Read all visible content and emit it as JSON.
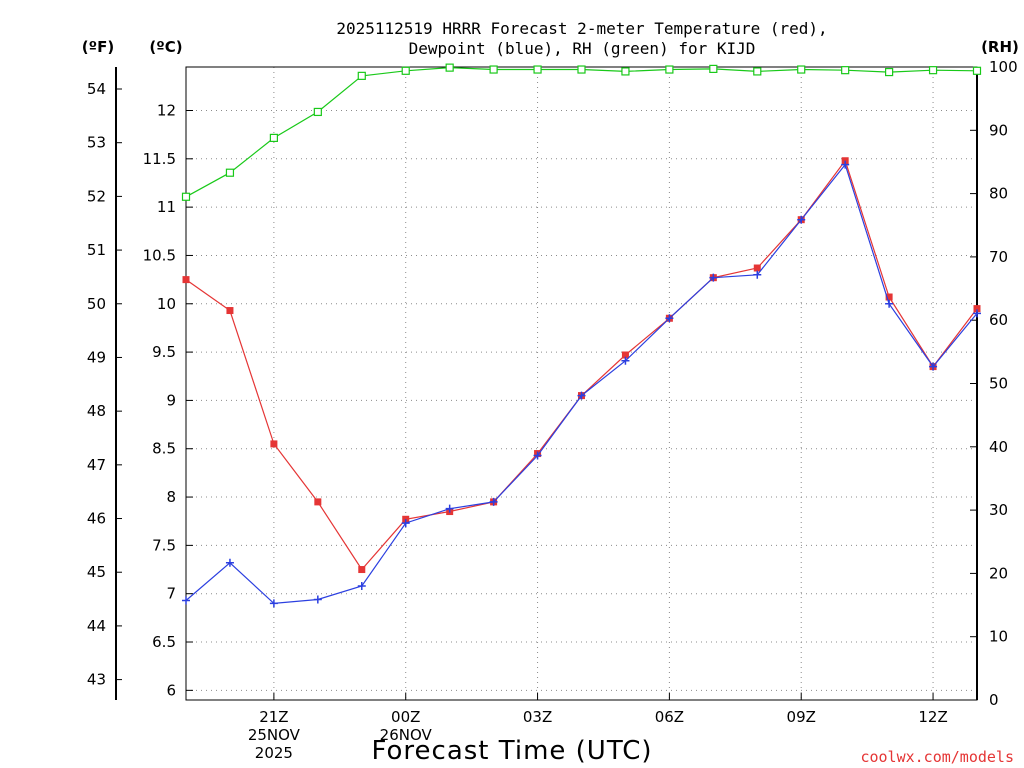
{
  "chart_data": {
    "type": "line",
    "title_lines": [
      "2025112519 HRRR Forecast 2-meter Temperature (red),",
      "Dewpoint (blue), RH (green) for KIJD"
    ],
    "xlabel": "Forecast Time (UTC)",
    "credit": "coolwx.com/models",
    "units": {
      "left_outer": "(ºF)",
      "left_inner": "(ºC)",
      "right": "(RH)"
    },
    "x_hours": [
      19,
      20,
      21,
      22,
      23,
      24,
      25,
      26,
      27,
      28,
      29,
      30,
      31,
      32,
      33,
      34,
      35,
      36,
      37
    ],
    "xlim": [
      19,
      37
    ],
    "x_ticks": [
      {
        "hour": 21,
        "label": "21Z",
        "date": "25NOV",
        "year": "2025"
      },
      {
        "hour": 24,
        "label": "00Z",
        "date": "26NOV"
      },
      {
        "hour": 27,
        "label": "03Z"
      },
      {
        "hour": 30,
        "label": "06Z"
      },
      {
        "hour": 33,
        "label": "09Z"
      },
      {
        "hour": 36,
        "label": "12Z"
      }
    ],
    "celsius_axis": {
      "lim": [
        5.9,
        12.45
      ],
      "ticks": [
        6,
        6.5,
        7,
        7.5,
        8,
        8.5,
        9,
        9.5,
        10,
        10.5,
        11,
        11.5,
        12
      ]
    },
    "fahrenheit_axis": {
      "ticks": [
        43,
        44,
        45,
        46,
        47,
        48,
        49,
        50,
        51,
        52,
        53,
        54
      ]
    },
    "rh_axis": {
      "lim": [
        0,
        100
      ],
      "ticks": [
        0,
        10,
        20,
        30,
        40,
        50,
        60,
        70,
        80,
        90,
        100
      ]
    },
    "colors": {
      "temperature": "#e53535",
      "dewpoint": "#2b3fe0",
      "rh": "#19c919",
      "grid": "#8c8c8c",
      "axis": "#000000"
    },
    "series": [
      {
        "name": "Temperature",
        "axis": "celsius",
        "marker": "filled-square",
        "values": [
          10.25,
          9.93,
          8.55,
          7.95,
          7.25,
          7.77,
          7.85,
          7.95,
          8.45,
          9.05,
          9.47,
          9.85,
          10.27,
          10.37,
          10.87,
          11.48,
          10.07,
          9.35,
          9.95
        ]
      },
      {
        "name": "Dewpoint",
        "axis": "celsius",
        "marker": "plus",
        "values": [
          6.93,
          7.32,
          6.9,
          6.94,
          7.08,
          7.73,
          7.88,
          7.95,
          8.43,
          9.05,
          9.41,
          9.85,
          10.27,
          10.3,
          10.87,
          11.44,
          10.0,
          9.35,
          9.9
        ]
      },
      {
        "name": "RH",
        "axis": "rh",
        "marker": "open-square",
        "values": [
          79.5,
          83.3,
          88.8,
          92.9,
          98.6,
          99.4,
          99.9,
          99.6,
          99.6,
          99.6,
          99.3,
          99.6,
          99.7,
          99.3,
          99.6,
          99.5,
          99.2,
          99.5,
          99.4
        ]
      }
    ]
  }
}
